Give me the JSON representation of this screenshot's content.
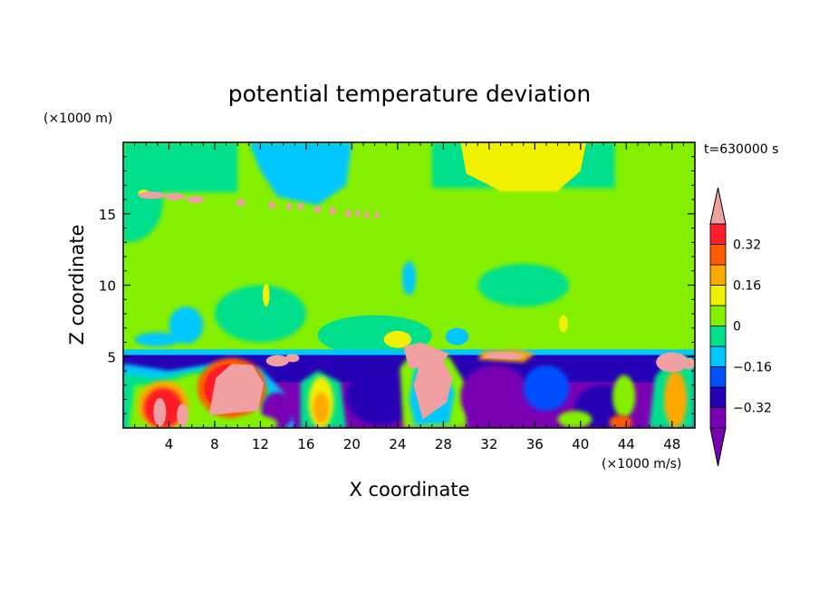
{
  "chart_data": {
    "type": "heatmap",
    "title": "potential temperature deviation",
    "xlabel": "X coordinate",
    "ylabel": "Z coordinate",
    "x_unit": "(×1000 m/s)",
    "y_unit": "(×1000 m)",
    "time_label": "t=630000 s",
    "xlim": [
      0,
      50
    ],
    "ylim": [
      0,
      20
    ],
    "x_ticks": [
      4,
      8,
      12,
      16,
      20,
      24,
      28,
      32,
      36,
      40,
      44,
      48
    ],
    "y_ticks": [
      5,
      10,
      15
    ],
    "colorbar": {
      "levels": [
        -0.4,
        -0.32,
        -0.24,
        -0.16,
        -0.08,
        0,
        0.08,
        0.16,
        0.24,
        0.32,
        0.4
      ],
      "tick_labels": [
        {
          "value": 0.32,
          "label": "0.32"
        },
        {
          "value": 0.16,
          "label": "0.16"
        },
        {
          "value": 0,
          "label": "0"
        },
        {
          "value": -0.16,
          "label": "−0.16"
        },
        {
          "value": -0.32,
          "label": "−0.32"
        }
      ],
      "colors": [
        "#7a00b4",
        "#2600b4",
        "#0050ff",
        "#00c8ff",
        "#00e08c",
        "#84f000",
        "#f0f000",
        "#ffa800",
        "#ff5a00",
        "#ff1e28"
      ],
      "under_color": "#7a00b4",
      "over_color": "#f0a0a0",
      "extend": "both"
    }
  }
}
